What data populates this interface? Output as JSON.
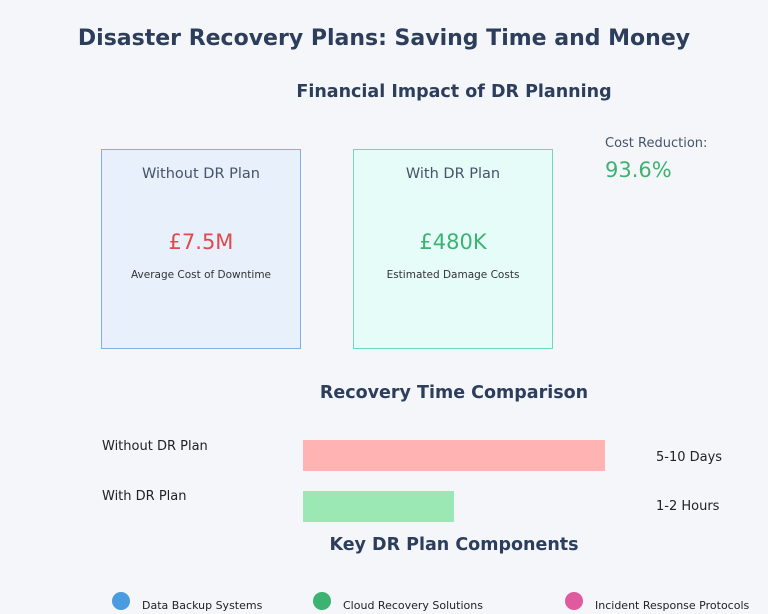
{
  "title": "Disaster Recovery Plans: Saving Time and Money",
  "financial": {
    "heading": "Financial Impact of DR Planning",
    "without": {
      "label": "Without DR Plan",
      "value": "£7.5M",
      "description": "Average Cost of Downtime",
      "value_color": "#e04a4a"
    },
    "with": {
      "label": "With DR Plan",
      "value": "£480K",
      "description": "Estimated Damage Costs",
      "value_color": "#3cb371"
    },
    "cost_reduction": {
      "label": "Cost Reduction:",
      "value": "93.6%"
    }
  },
  "recovery": {
    "heading": "Recovery Time Comparison",
    "rows": [
      {
        "label": "Without DR Plan",
        "value_text": "5-10 Days",
        "color": "#ffb3b3",
        "bar_fraction": 1.0
      },
      {
        "label": "With DR Plan",
        "value_text": "1-2 Hours",
        "color": "#9be8b4",
        "bar_fraction": 0.5
      }
    ]
  },
  "components": {
    "heading": "Key DR Plan Components",
    "items": [
      {
        "label": "Data Backup Systems",
        "color": "#4a9be0"
      },
      {
        "label": "Cloud Recovery Solutions",
        "color": "#3cb371"
      },
      {
        "label": "Incident Response Protocols",
        "color": "#e05aa0"
      }
    ]
  }
}
